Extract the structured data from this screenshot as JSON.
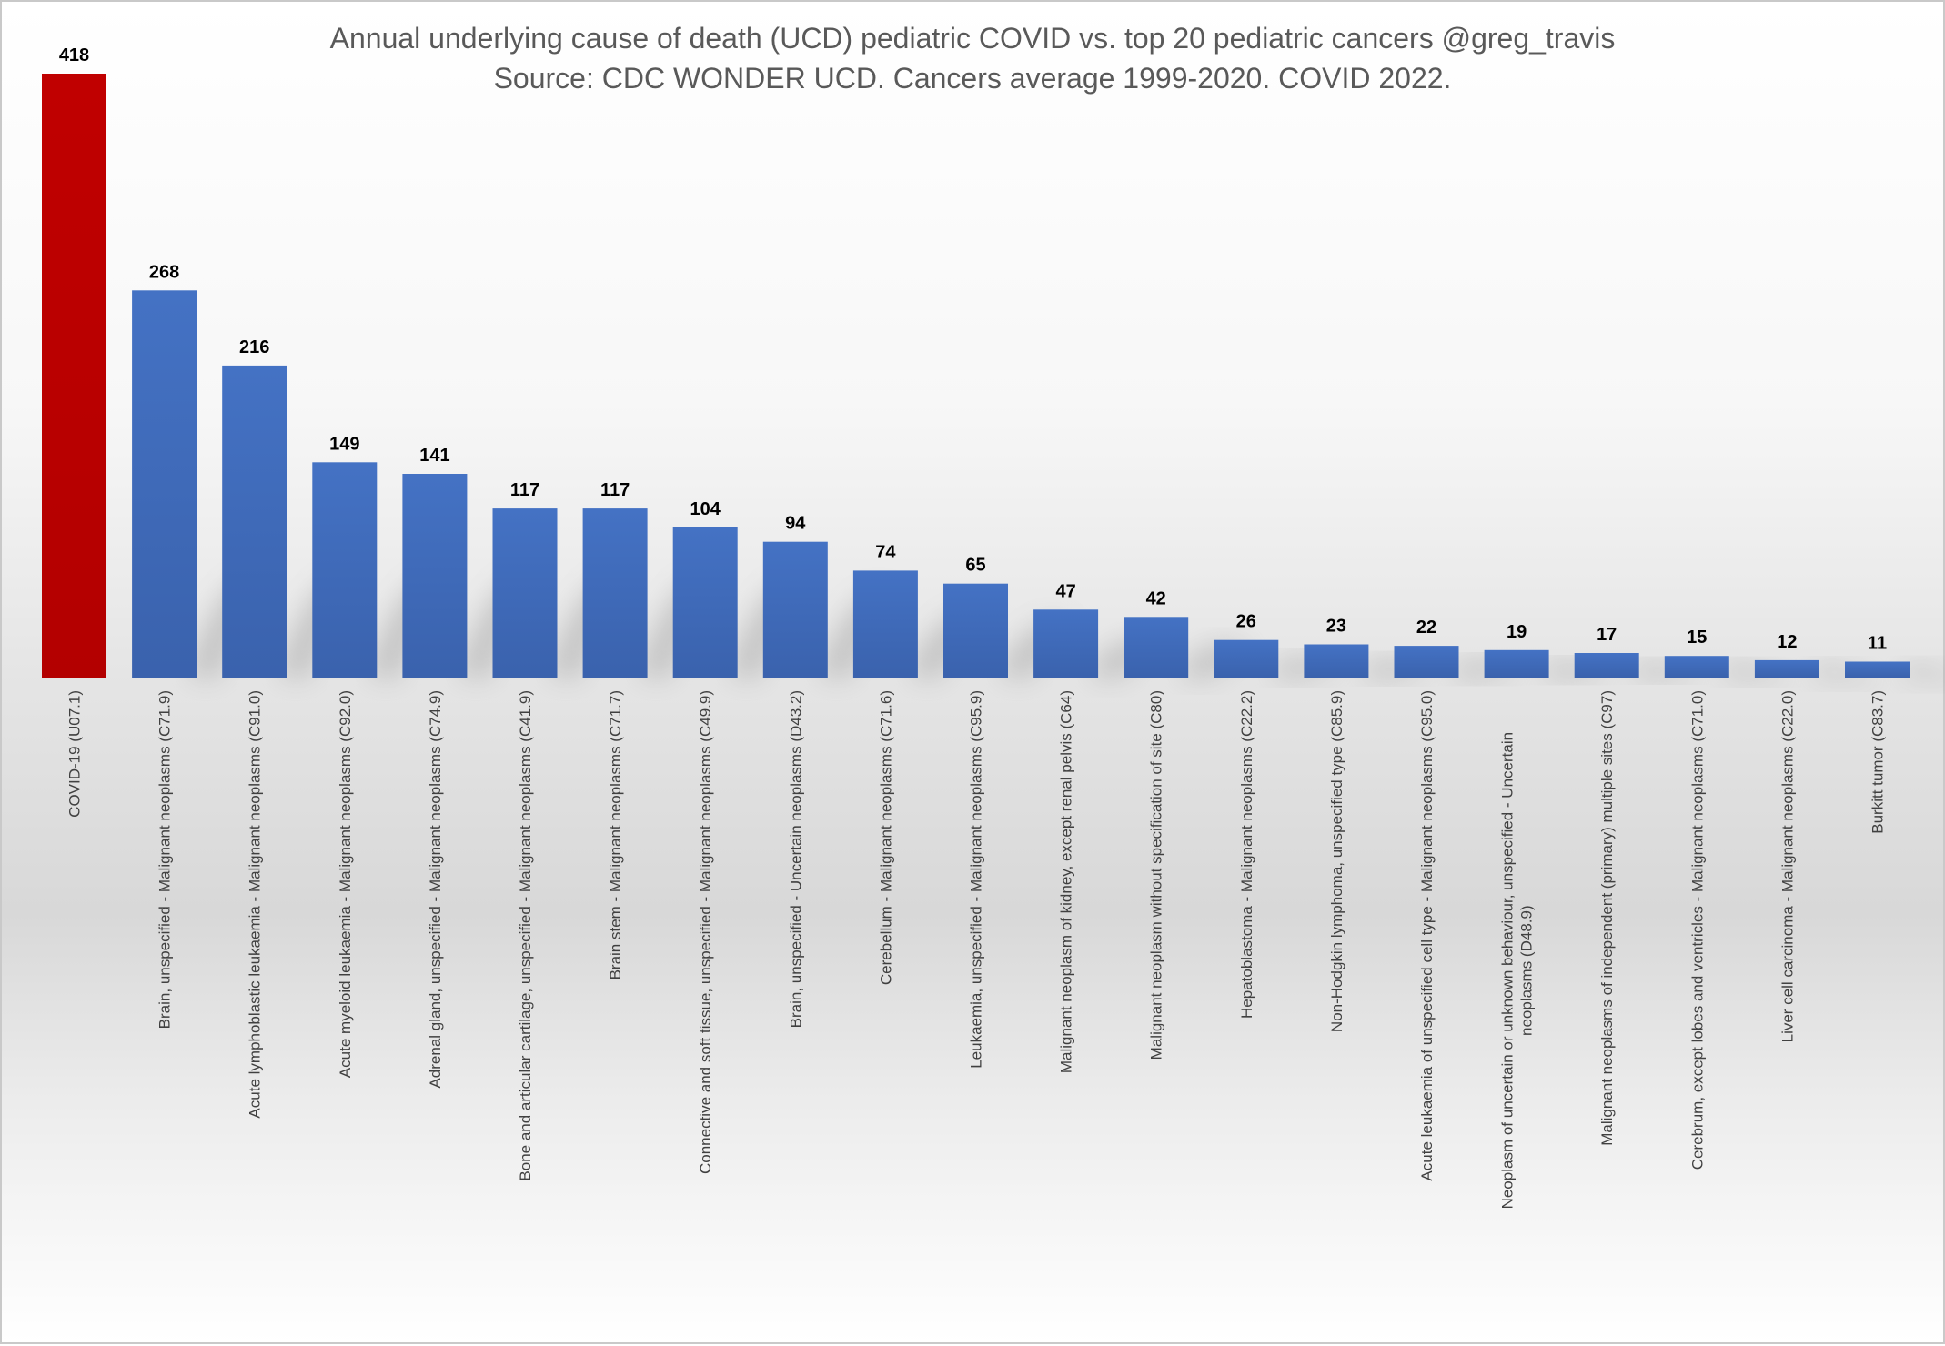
{
  "chart_data": {
    "type": "bar",
    "title": "Annual underlying cause of death (UCD) pediatric COVID vs. top 20 pediatric cancers @greg_travis",
    "subtitle": "Source: CDC WONDER UCD.  Cancers average 1999-2020.  COVID 2022.",
    "xlabel": "",
    "ylabel": "",
    "ylim": [
      0,
      418
    ],
    "grid": false,
    "legend": "none",
    "categories": [
      "COVID-19 (U07.1)",
      "Brain, unspecified - Malignant neoplasms (C71.9)",
      "Acute lymphoblastic leukaemia - Malignant neoplasms (C91.0)",
      "Acute myeloid leukaemia - Malignant neoplasms (C92.0)",
      "Adrenal gland, unspecified - Malignant neoplasms (C74.9)",
      "Bone and articular cartilage, unspecified - Malignant neoplasms (C41.9)",
      "Brain stem - Malignant neoplasms (C71.7)",
      "Connective and soft tissue, unspecified - Malignant neoplasms (C49.9)",
      "Brain, unspecified - Uncertain neoplasms (D43.2)",
      "Cerebellum - Malignant neoplasms (C71.6)",
      "Leukaemia, unspecified - Malignant neoplasms (C95.9)",
      "Malignant neoplasm of kidney, except renal pelvis (C64)",
      "Malignant neoplasm without specification of site (C80)",
      "Hepatoblastoma - Malignant neoplasms (C22.2)",
      "Non-Hodgkin lymphoma, unspecified type (C85.9)",
      "Acute leukaemia of unspecified cell type - Malignant neoplasms (C95.0)",
      "Neoplasm of uncertain or unknown behaviour, unspecified - Uncertain neoplasms (D48.9)",
      "Malignant neoplasms of independent (primary) multiple sites (C97)",
      "Cerebrum, except lobes and ventricles - Malignant neoplasms (C71.0)",
      "Liver cell carcinoma - Malignant neoplasms (C22.0)",
      "Burkitt tumor (C83.7)"
    ],
    "values": [
      418,
      268,
      216,
      149,
      141,
      117,
      117,
      104,
      94,
      74,
      65,
      47,
      42,
      26,
      23,
      22,
      19,
      17,
      15,
      12,
      11
    ],
    "colors": {
      "highlight": "#c00000",
      "bar_top": "#4472c4",
      "bar_bottom": "#3a62ad",
      "value_label": "#000000",
      "category_label": "#404040",
      "title": "#595959"
    }
  }
}
